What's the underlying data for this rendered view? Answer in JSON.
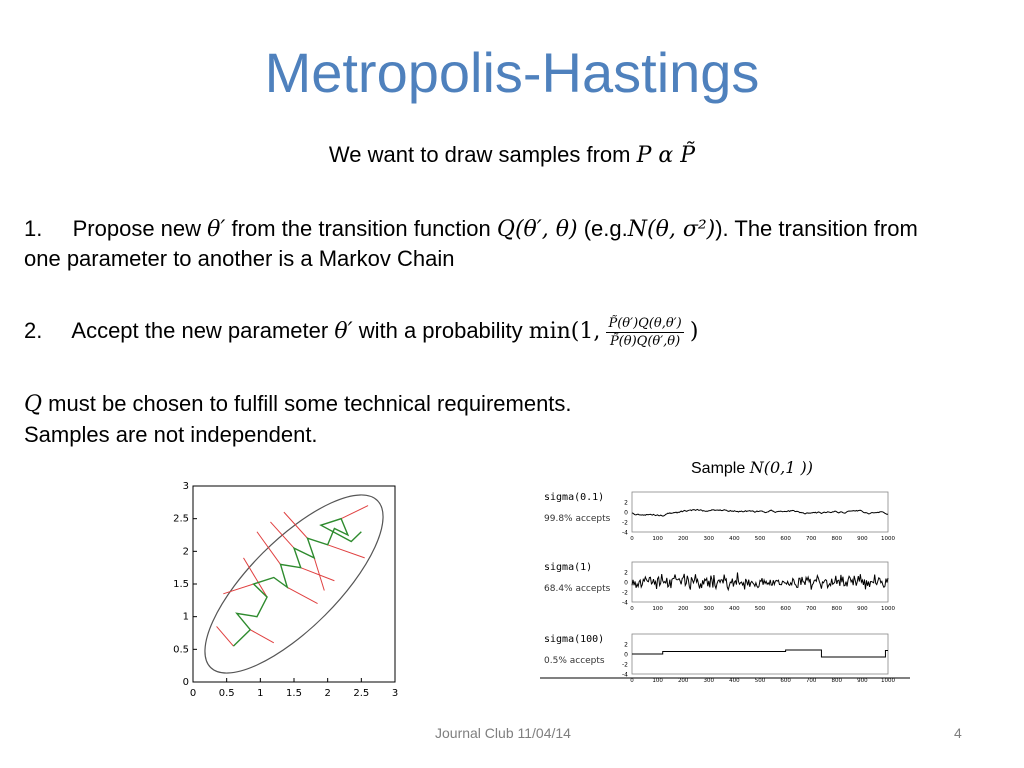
{
  "title": "Metropolis-Hastings",
  "subtitle": {
    "text": "We want to draw samples from",
    "math": "P α P̃"
  },
  "step1": {
    "num": "1.",
    "t1": "Propose new",
    "m1": "θ′",
    "t2": "from the transition function",
    "m2": "Q(θ′, θ)",
    "t3": "(e.g.",
    "m3": "N(θ, σ²)",
    "t4": "). The transition from",
    "line2": "one parameter to another is a Markov Chain"
  },
  "step2": {
    "num": "2.",
    "t1": "Accept the new parameter",
    "m1": "θ′",
    "t2": "with a probability",
    "min": "min(1,",
    "num_expr": "P̃(θ′)Q(θ,θ′)",
    "den_expr": "P̃(θ)Q(θ′,θ)",
    "close": ")"
  },
  "note1": {
    "m": "Q",
    "text": "must be chosen to fulfill some technical requirements."
  },
  "note2": "Samples are not independent.",
  "sample_label": {
    "text": "Sample",
    "math": "N(0,1 ))"
  },
  "footer": {
    "left": "Journal Club 11/04/14",
    "page": "4"
  },
  "chart_data": [
    {
      "type": "scatter",
      "title": "",
      "xlabel": "",
      "ylabel": "",
      "xlim": [
        0,
        3
      ],
      "ylim": [
        0,
        3
      ],
      "xticks": [
        "0",
        "0.5",
        "1",
        "1.5",
        "2",
        "2.5",
        "3"
      ],
      "yticks": [
        "0",
        "0.5",
        "1",
        "1.5",
        "2",
        "2.5",
        "3"
      ],
      "grid": false,
      "ellipse": {
        "cx": 1.5,
        "cy": 1.5,
        "note": "tilted target contour"
      },
      "accepted_path": [
        [
          0.6,
          0.55
        ],
        [
          0.85,
          0.8
        ],
        [
          0.65,
          1.05
        ],
        [
          0.95,
          1.0
        ],
        [
          1.1,
          1.3
        ],
        [
          0.9,
          1.5
        ],
        [
          1.2,
          1.6
        ],
        [
          1.4,
          1.45
        ],
        [
          1.3,
          1.8
        ],
        [
          1.6,
          1.75
        ],
        [
          1.5,
          2.05
        ],
        [
          1.8,
          1.9
        ],
        [
          1.7,
          2.2
        ],
        [
          2.0,
          2.1
        ],
        [
          2.1,
          2.35
        ],
        [
          2.3,
          2.25
        ],
        [
          2.2,
          2.5
        ],
        [
          1.9,
          2.4
        ],
        [
          2.35,
          2.15
        ],
        [
          2.5,
          2.3
        ]
      ],
      "rejected_moves": [
        [
          [
            0.6,
            0.55
          ],
          [
            0.35,
            0.85
          ]
        ],
        [
          [
            0.85,
            0.8
          ],
          [
            1.2,
            0.6
          ]
        ],
        [
          [
            1.1,
            1.3
          ],
          [
            0.75,
            1.9
          ]
        ],
        [
          [
            1.4,
            1.45
          ],
          [
            1.85,
            1.2
          ]
        ],
        [
          [
            1.3,
            1.8
          ],
          [
            0.95,
            2.3
          ]
        ],
        [
          [
            1.6,
            1.75
          ],
          [
            2.1,
            1.55
          ]
        ],
        [
          [
            1.7,
            2.2
          ],
          [
            1.35,
            2.6
          ]
        ],
        [
          [
            2.0,
            2.1
          ],
          [
            2.55,
            1.9
          ]
        ],
        [
          [
            2.2,
            2.5
          ],
          [
            2.6,
            2.7
          ]
        ],
        [
          [
            0.9,
            1.5
          ],
          [
            0.45,
            1.35
          ]
        ],
        [
          [
            1.8,
            1.9
          ],
          [
            1.95,
            1.4
          ]
        ],
        [
          [
            1.5,
            2.05
          ],
          [
            1.15,
            2.45
          ]
        ]
      ],
      "colors": {
        "accepted": "#2e8b2e",
        "rejected": "#e04040",
        "ellipse": "#555555"
      }
    },
    {
      "type": "line",
      "name_label": "sigma(0.1)",
      "annotation": "99.8% accepts",
      "xlim": [
        0,
        1000
      ],
      "ylim": [
        -4,
        4
      ],
      "xticks": [
        "0",
        "100",
        "200",
        "300",
        "400",
        "500",
        "600",
        "700",
        "800",
        "900",
        "1000"
      ],
      "yticks": [
        "2",
        "0",
        "-2",
        "-4"
      ],
      "pattern": "slow-random-walk"
    },
    {
      "type": "line",
      "name_label": "sigma(1)",
      "annotation": "68.4% accepts",
      "xlim": [
        0,
        1000
      ],
      "ylim": [
        -4,
        4
      ],
      "xticks": [
        "0",
        "100",
        "200",
        "300",
        "400",
        "500",
        "600",
        "700",
        "800",
        "900",
        "1000"
      ],
      "yticks": [
        "2",
        "0",
        "-2",
        "-4"
      ],
      "pattern": "noisy"
    },
    {
      "type": "line",
      "name_label": "sigma(100)",
      "annotation": "0.5% accepts",
      "xlim": [
        0,
        1000
      ],
      "ylim": [
        -4,
        4
      ],
      "xticks": [
        "0",
        "100",
        "200",
        "300",
        "400",
        "500",
        "600",
        "700",
        "800",
        "900",
        "1000"
      ],
      "yticks": [
        "2",
        "0",
        "-2",
        "-4"
      ],
      "steps": [
        [
          0,
          0.0
        ],
        [
          120,
          0.5
        ],
        [
          600,
          0.8
        ],
        [
          740,
          -0.6
        ],
        [
          990,
          0.7
        ],
        [
          1000,
          0.7
        ]
      ]
    }
  ]
}
